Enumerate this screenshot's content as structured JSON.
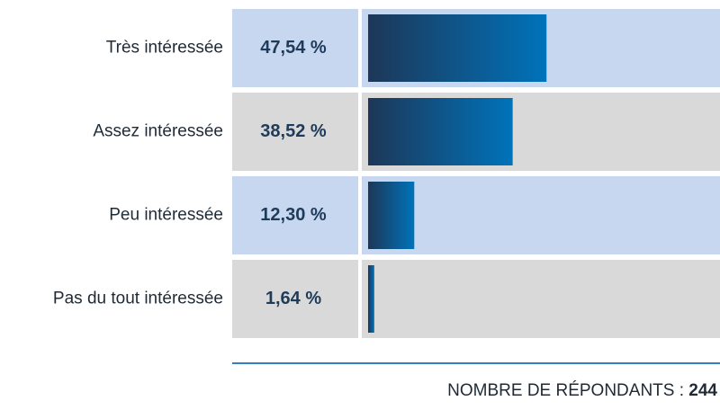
{
  "chart_data": {
    "type": "bar",
    "orientation": "horizontal",
    "categories": [
      "Très intéressée",
      "Assez intéressée",
      "Peu intéressée",
      "Pas du tout intéressée"
    ],
    "values": [
      47.54,
      38.52,
      12.3,
      1.64
    ],
    "value_labels": [
      "47,54 %",
      "38,52 %",
      "12,30 %",
      "1,64 %"
    ],
    "row_colors": [
      "#c6d7ef",
      "#d9d9d9"
    ],
    "bar_gradient": [
      "#1d3757",
      "#0073ba"
    ],
    "rule_color": "#2f80c3",
    "respondents_label": "NOMBRE DE RÉPONDANTS :",
    "respondents": 244
  }
}
